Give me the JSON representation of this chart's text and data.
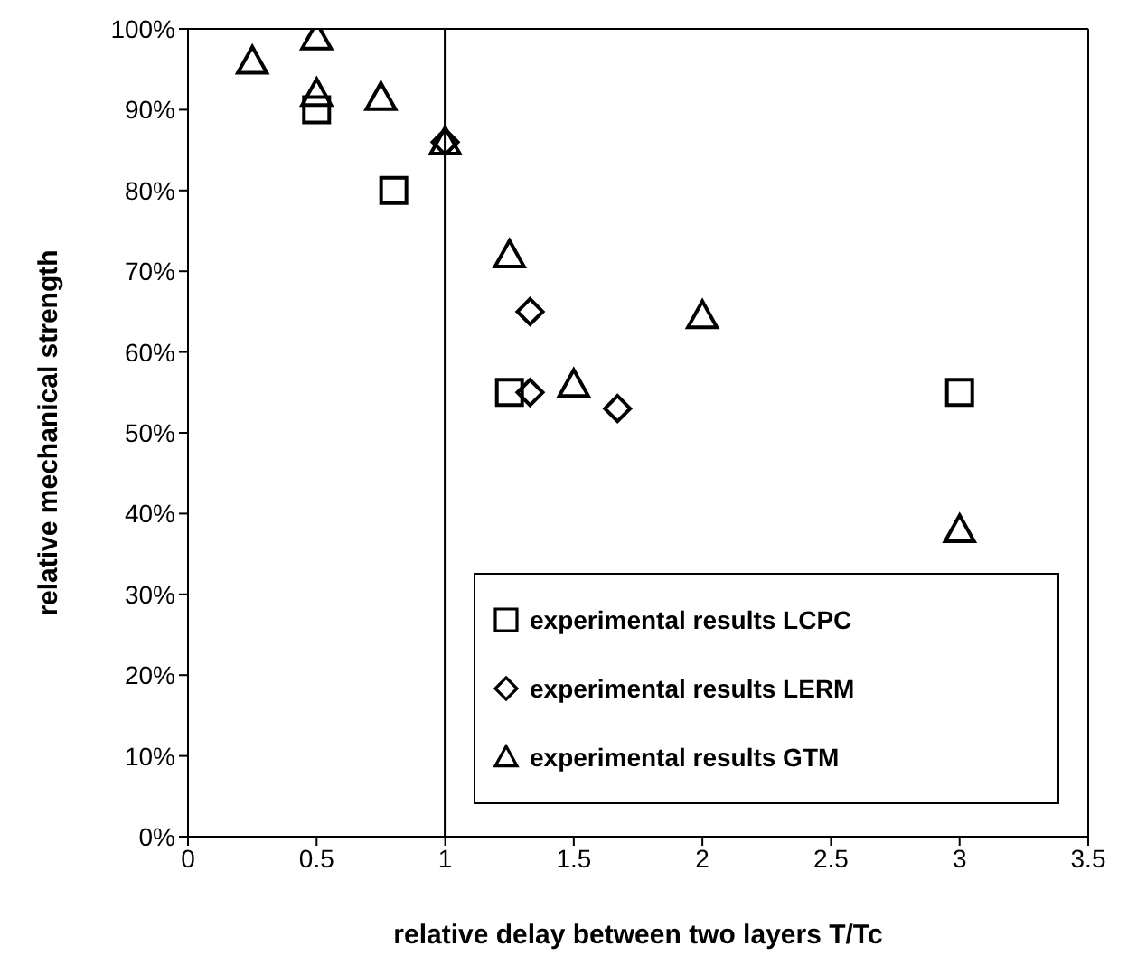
{
  "chart_data": {
    "type": "scatter",
    "xlabel": "relative delay between two layers T/Tc",
    "ylabel": "relative mechanical strength",
    "xlim": [
      0,
      3.5
    ],
    "xticks": [
      0,
      0.5,
      1,
      1.5,
      2,
      2.5,
      3,
      3.5
    ],
    "ylim": [
      0,
      100
    ],
    "yticks": [
      {
        "value": 0,
        "label": "0%"
      },
      {
        "value": 10,
        "label": "10%"
      },
      {
        "value": 20,
        "label": "20%"
      },
      {
        "value": 30,
        "label": "30%"
      },
      {
        "value": 40,
        "label": "40%"
      },
      {
        "value": 50,
        "label": "50%"
      },
      {
        "value": 60,
        "label": "60%"
      },
      {
        "value": 70,
        "label": "70%"
      },
      {
        "value": 80,
        "label": "80%"
      },
      {
        "value": 90,
        "label": "90%"
      },
      {
        "value": 100,
        "label": "100%"
      }
    ],
    "legend": "bottom right",
    "ref_lines": [
      {
        "axis": "x",
        "value": 1,
        "color": "#000000"
      }
    ],
    "series": [
      {
        "name": "experimental results LCPC",
        "color": "#000000",
        "marker": "square",
        "x": [
          0.5,
          0.8,
          1.25,
          3
        ],
        "values": [
          90,
          80,
          55,
          55
        ]
      },
      {
        "name": "experimental results LERM",
        "color": "#000000",
        "marker": "diamond",
        "x": [
          1,
          1.33,
          1.33,
          1.67
        ],
        "values": [
          86,
          65,
          55,
          53
        ]
      },
      {
        "name": "experimental results GTM",
        "color": "#000000",
        "marker": "triangle",
        "x": [
          0.25,
          0.5,
          0.5,
          0.75,
          1,
          1.25,
          1.5,
          2,
          3
        ],
        "values": [
          96,
          99,
          92,
          91.5,
          86,
          72,
          56,
          64.5,
          38
        ]
      }
    ]
  }
}
